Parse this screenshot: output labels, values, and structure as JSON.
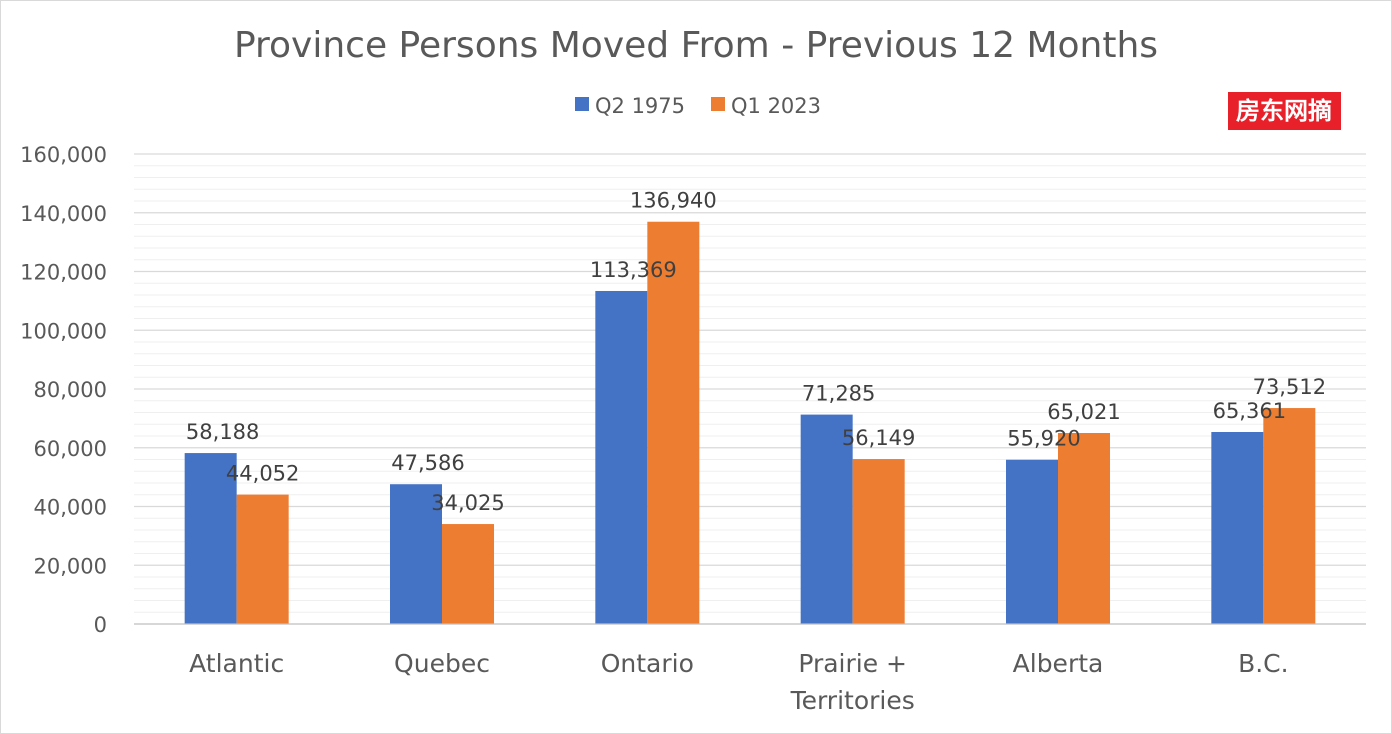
{
  "chart_data": {
    "type": "bar",
    "title": "Province Persons Moved From - Previous 12 Months",
    "categories": [
      [
        "Atlantic"
      ],
      [
        "Quebec"
      ],
      [
        "Ontario"
      ],
      [
        "Prairie +",
        "Territories"
      ],
      [
        "Alberta"
      ],
      [
        "B.C."
      ]
    ],
    "series": [
      {
        "name": "Q2 1975",
        "color": "#4472c4",
        "values": [
          58188,
          47586,
          113369,
          71285,
          55920,
          65361
        ]
      },
      {
        "name": "Q1 2023",
        "color": "#ed7d31",
        "values": [
          44052,
          34025,
          136940,
          56149,
          65021,
          73512
        ]
      }
    ],
    "ylim": [
      0,
      160000
    ],
    "yticks": [
      0,
      20000,
      40000,
      60000,
      80000,
      100000,
      120000,
      140000,
      160000
    ],
    "legend": "top-center",
    "grid": true,
    "data_labels": true
  },
  "watermark": {
    "text": "房东网摘",
    "color": "#e8202a"
  }
}
